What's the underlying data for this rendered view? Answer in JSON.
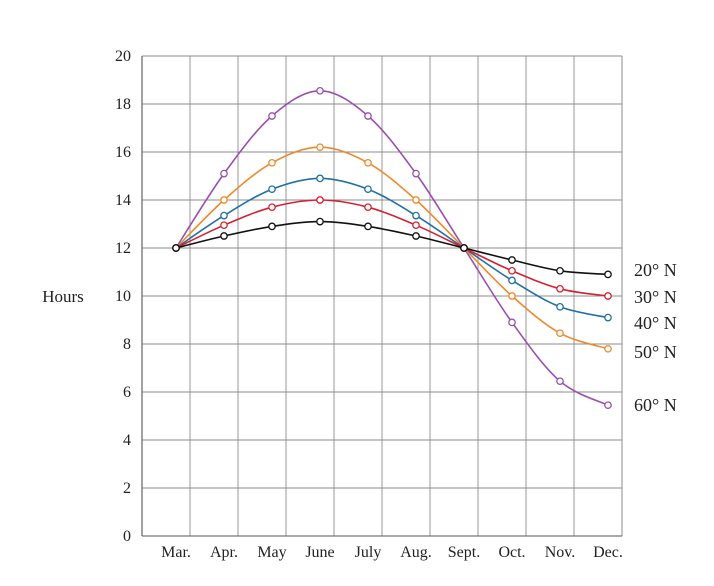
{
  "chart_data": {
    "type": "line",
    "title": "",
    "xlabel": "",
    "ylabel": "Hours",
    "categories": [
      "Mar.",
      "Apr.",
      "May",
      "June",
      "July",
      "Aug.",
      "Sept.",
      "Oct.",
      "Nov.",
      "Dec."
    ],
    "ylim": [
      0,
      20
    ],
    "yticks": [
      "0",
      "2",
      "4",
      "6",
      "8",
      "10",
      "12",
      "14",
      "16",
      "18",
      "20"
    ],
    "grid": true,
    "legend": "right",
    "series": [
      {
        "name": "20° N",
        "color": "#111111",
        "x": [
          0,
          1,
          2,
          3,
          4,
          5,
          6,
          7,
          8,
          9
        ],
        "values": [
          12.0,
          12.5,
          12.9,
          13.1,
          12.9,
          12.5,
          12.0,
          11.5,
          11.05,
          10.9
        ]
      },
      {
        "name": "30° N",
        "color": "#d62030",
        "x": [
          0,
          1,
          2,
          3,
          4,
          5,
          6,
          7,
          8,
          9
        ],
        "values": [
          12.0,
          12.95,
          13.7,
          14.0,
          13.7,
          12.95,
          12.0,
          11.05,
          10.3,
          10.0
        ]
      },
      {
        "name": "40° N",
        "color": "#1f6fa8",
        "x": [
          0,
          1,
          2,
          3,
          4,
          5,
          6,
          7,
          8,
          9
        ],
        "values": [
          12.0,
          13.35,
          14.45,
          14.9,
          14.45,
          13.35,
          12.0,
          10.65,
          9.55,
          9.1
        ]
      },
      {
        "name": "50° N",
        "color": "#ee8a2a",
        "x": [
          0,
          1,
          2,
          3,
          4,
          5,
          6,
          7,
          8,
          9
        ],
        "values": [
          12.0,
          14.0,
          15.55,
          16.2,
          15.55,
          14.0,
          12.0,
          10.0,
          8.45,
          7.8
        ]
      },
      {
        "name": "60° N",
        "color": "#9a4fb0",
        "x": [
          0,
          1,
          2,
          3,
          4,
          5,
          6,
          7,
          8,
          9
        ],
        "values": [
          12.0,
          15.1,
          17.5,
          18.55,
          17.5,
          15.1,
          12.0,
          8.9,
          6.45,
          5.45
        ]
      }
    ]
  }
}
